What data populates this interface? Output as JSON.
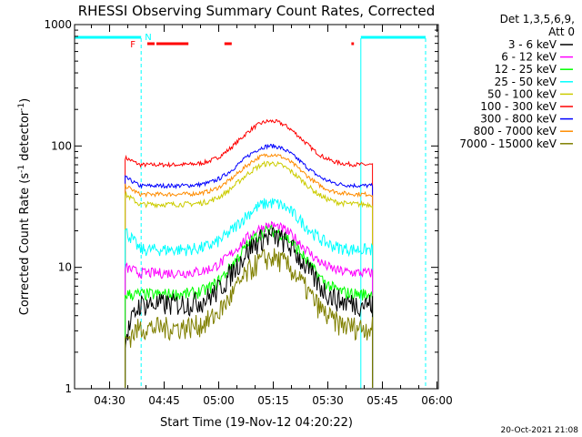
{
  "chart_data": {
    "type": "line",
    "title": "RHESSI Observing Summary Count Rates, Corrected",
    "xlabel": "Start Time (19-Nov-12 04:20:22)",
    "ylabel_main": "Corrected Count Rate (s",
    "ylabel_sup1": "-1",
    "ylabel_mid": " detector",
    "ylabel_sup2": "-1",
    "ylabel_end": ")",
    "yscale": "log",
    "ylim": [
      1,
      1000
    ],
    "xlim_minutes": [
      0,
      100
    ],
    "x_ticks": [
      {
        "label": "04:30",
        "t": 9.63
      },
      {
        "label": "04:45",
        "t": 24.63
      },
      {
        "label": "05:00",
        "t": 39.63
      },
      {
        "label": "05:15",
        "t": 54.63
      },
      {
        "label": "05:30",
        "t": 69.63
      },
      {
        "label": "05:45",
        "t": 84.63
      },
      {
        "label": "06:00",
        "t": 99.63
      }
    ],
    "y_ticks": [
      {
        "label": "1",
        "v": 1
      },
      {
        "label": "10",
        "v": 10
      },
      {
        "label": "100",
        "v": 100
      },
      {
        "label": "1000",
        "v": 1000
      }
    ],
    "legend_header": [
      "Det 1,3,5,6,9,",
      "Att 0"
    ],
    "legend_position": "top-right",
    "series": [
      {
        "name": "3 - 6 keV",
        "color": "#000000"
      },
      {
        "name": "6 - 12 keV",
        "color": "#ff00ff"
      },
      {
        "name": "12 - 25 keV",
        "color": "#00ff00"
      },
      {
        "name": "25 - 50 keV",
        "color": "#00ffff"
      },
      {
        "name": "50 - 100 keV",
        "color": "#cccc00"
      },
      {
        "name": "100 - 300 keV",
        "color": "#ff0000"
      },
      {
        "name": "300 - 800 keV",
        "color": "#0000ff"
      },
      {
        "name": "800 - 7000 keV",
        "color": "#ff8c00"
      },
      {
        "name": "7000 - 15000 keV",
        "color": "#808000"
      }
    ],
    "series_levels": [
      {
        "series": 5,
        "start": 80,
        "base": 70,
        "peak": 160,
        "noise": 0.04
      },
      {
        "series": 6,
        "start": 55,
        "base": 47,
        "peak": 100,
        "noise": 0.04
      },
      {
        "series": 7,
        "start": 47,
        "base": 40,
        "peak": 85,
        "noise": 0.04
      },
      {
        "series": 4,
        "start": 40,
        "base": 33,
        "peak": 72,
        "noise": 0.05
      },
      {
        "series": 3,
        "start": 20,
        "base": 14,
        "peak": 34,
        "noise": 0.12
      },
      {
        "series": 1,
        "start": 10,
        "base": 9,
        "peak": 22,
        "noise": 0.1
      },
      {
        "series": 2,
        "start": 6,
        "base": 6,
        "peak": 20,
        "noise": 0.12
      },
      {
        "series": 0,
        "start": 2.5,
        "base": 5,
        "peak": 18,
        "noise": 0.22
      },
      {
        "series": 8,
        "start": 2.5,
        "base": 3.2,
        "peak": 12,
        "noise": 0.22
      }
    ],
    "flags": {
      "F_label": "F",
      "N_label": "N",
      "flare_color": "#ff0000",
      "night_color": "#00ffff",
      "flare_intervals": [
        [
          20,
          22
        ],
        [
          22.5,
          31.3
        ],
        [
          41.2,
          43.2
        ],
        [
          76.1,
          76.8
        ]
      ],
      "night_intervals": [
        [
          0,
          18.3
        ],
        [
          78.7,
          96.5
        ]
      ],
      "night_boundaries": [
        18.3,
        78.7,
        96.5
      ],
      "data_interval": [
        13.9,
        81.9
      ]
    },
    "timestamp": "20-Oct-2021 21:08"
  }
}
